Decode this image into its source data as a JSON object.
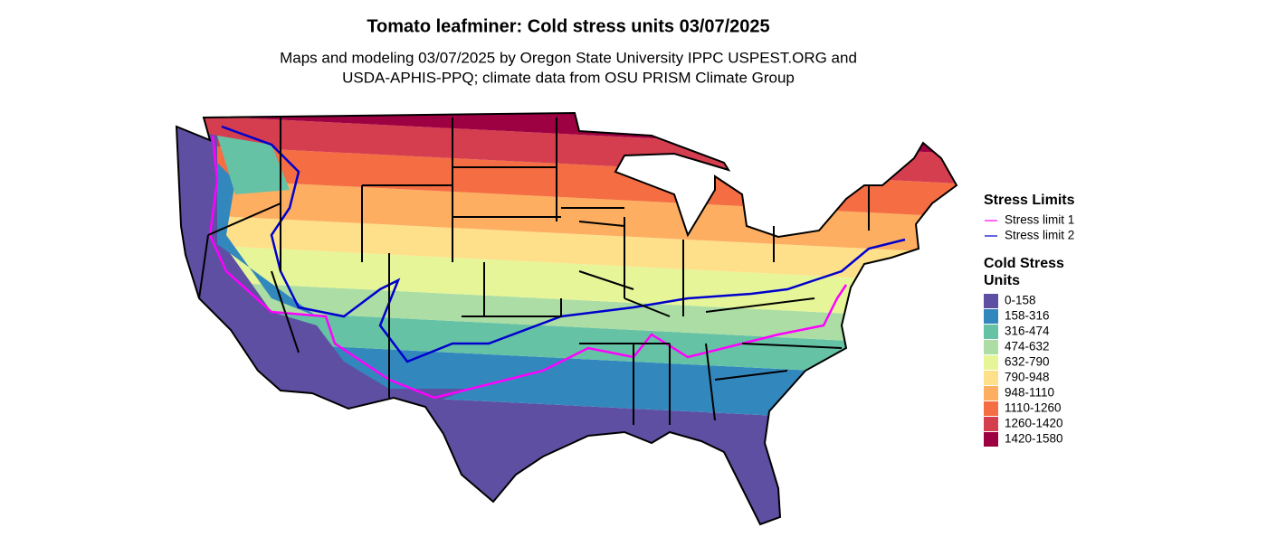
{
  "title": "Tomato leafminer: Cold stress units 03/07/2025",
  "subtitle": [
    "Maps and modeling 03/07/2025 by Oregon State University IPPC USPEST.ORG and",
    "USDA-APHIS-PPQ; climate data from OSU PRISM Climate Group"
  ],
  "legend": {
    "lines": {
      "title": "Stress Limits",
      "items": [
        {
          "label": "Stress limit 1",
          "color": "#ff00ff"
        },
        {
          "label": "Stress limit 2",
          "color": "#0000cd"
        }
      ]
    },
    "fill": {
      "title": [
        "Cold Stress",
        "Units"
      ],
      "items": [
        {
          "label": "0-158",
          "color": "#5e4fa2"
        },
        {
          "label": "158-316",
          "color": "#3288bd"
        },
        {
          "label": "316-474",
          "color": "#66c2a5"
        },
        {
          "label": "474-632",
          "color": "#abdda4"
        },
        {
          "label": "632-790",
          "color": "#e6f598"
        },
        {
          "label": "790-948",
          "color": "#fee08b"
        },
        {
          "label": "948-1110",
          "color": "#fdae61"
        },
        {
          "label": "1110-1260",
          "color": "#f46d43"
        },
        {
          "label": "1260-1420",
          "color": "#d53e4f"
        },
        {
          "label": "1420-1580",
          "color": "#9e0142"
        }
      ]
    }
  }
}
